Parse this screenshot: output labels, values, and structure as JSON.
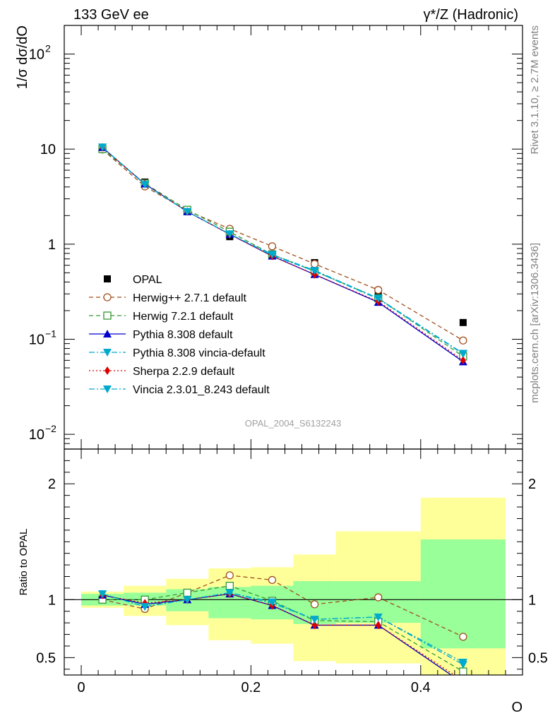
{
  "header": {
    "left_title": "133 GeV ee",
    "right_title": "γ*/Z (Hadronic)"
  },
  "side": {
    "rivet": "Rivet 3.1.10, ≥ 2.7M events",
    "mcplots": "mcplots.cern.ch [arXiv:1306.3436]"
  },
  "analysis_label": "OPAL_2004_S6132243",
  "chart_data": [
    {
      "type": "scatter",
      "panel": "main",
      "ylabel": "1/σ dσ/dO",
      "yscale": "log",
      "ylim": [
        0.007,
        200
      ],
      "xlim": [
        -0.02,
        0.52
      ],
      "yticks": [
        {
          "value": 100,
          "base": "10",
          "exp": "2"
        },
        {
          "value": 10,
          "base": "10",
          "exp": ""
        },
        {
          "value": 1,
          "base": "1",
          "exp": ""
        },
        {
          "value": 0.1,
          "base": "10",
          "exp": "−1"
        },
        {
          "value": 0.01,
          "base": "10",
          "exp": "−2"
        }
      ],
      "x": [
        0.025,
        0.075,
        0.125,
        0.175,
        0.225,
        0.275,
        0.35,
        0.45
      ],
      "bin_edges": [
        0.0,
        0.05,
        0.1,
        0.15,
        0.2,
        0.25,
        0.3,
        0.4,
        0.5
      ],
      "series": [
        {
          "name": "OPAL",
          "color": "#000000",
          "marker": "square",
          "line": "none",
          "values": [
            10.1,
            4.5,
            2.2,
            1.2,
            0.79,
            0.64,
            0.32,
            0.15
          ]
        },
        {
          "name": "Herwig++ 2.7.1 default",
          "color": "#a0501e",
          "marker": "circle-open",
          "line": "dash",
          "values": [
            9.9,
            4.05,
            2.25,
            1.45,
            0.95,
            0.62,
            0.33,
            0.097
          ]
        },
        {
          "name": "Herwig 7.2.1 default",
          "color": "#339933",
          "marker": "square-open",
          "line": "dash",
          "values": [
            10.0,
            4.35,
            2.3,
            1.35,
            0.78,
            0.52,
            0.27,
            0.066
          ]
        },
        {
          "name": "Pythia 8.308 default",
          "color": "#0000cc",
          "marker": "triangle-up",
          "line": "solid",
          "values": [
            10.4,
            4.3,
            2.2,
            1.27,
            0.75,
            0.48,
            0.245,
            0.058
          ]
        },
        {
          "name": "Pythia 8.308 vincia-default",
          "color": "#00aacc",
          "marker": "triangle-down",
          "line": "dashdot",
          "values": [
            10.5,
            4.25,
            2.2,
            1.28,
            0.76,
            0.52,
            0.265,
            0.07
          ]
        },
        {
          "name": "Sherpa 2.2.9 default",
          "color": "#dd0000",
          "marker": "diamond",
          "line": "dot",
          "values": [
            10.4,
            4.3,
            2.2,
            1.27,
            0.75,
            0.48,
            0.25,
            0.06
          ]
        },
        {
          "name": "Vincia 2.3.01_8.243 default",
          "color": "#00aacc",
          "marker": "triangle-down",
          "line": "dashdot",
          "values": [
            10.5,
            4.25,
            2.2,
            1.28,
            0.78,
            0.53,
            0.27,
            0.071
          ]
        }
      ]
    },
    {
      "type": "line",
      "panel": "ratio",
      "ylabel": "Ratio to OPAL",
      "xlabel": "O",
      "ylim": [
        0.35,
        2.3
      ],
      "yticks": [
        0.5,
        1,
        2
      ],
      "xticks": [
        0,
        0.2,
        0.4
      ],
      "reference": 1,
      "band_stat": [
        [
          0.95,
          1.05
        ],
        [
          0.95,
          1.06
        ],
        [
          0.9,
          1.09
        ],
        [
          0.84,
          1.11
        ],
        [
          0.83,
          1.12
        ],
        [
          0.79,
          1.16
        ],
        [
          0.8,
          1.16
        ],
        [
          0.58,
          1.52
        ]
      ],
      "band_total": [
        [
          0.93,
          1.07
        ],
        [
          0.86,
          1.12
        ],
        [
          0.78,
          1.18
        ],
        [
          0.65,
          1.27
        ],
        [
          0.62,
          1.28
        ],
        [
          0.47,
          1.39
        ],
        [
          0.45,
          1.59
        ],
        [
          0.26,
          1.88
        ]
      ],
      "series": [
        {
          "name": "Herwig++ 2.7.1 default",
          "values": [
            1.0,
            0.92,
            1.06,
            1.21,
            1.17,
            0.96,
            1.02,
            0.68
          ]
        },
        {
          "name": "Herwig 7.2.1 default",
          "values": [
            1.0,
            1.0,
            1.06,
            1.12,
            0.99,
            0.82,
            0.81,
            0.38
          ]
        },
        {
          "name": "Pythia 8.308 default",
          "values": [
            1.04,
            0.96,
            1.0,
            1.05,
            0.95,
            0.78,
            0.78,
            0.28
          ]
        },
        {
          "name": "Pythia 8.308 vincia-default",
          "values": [
            1.05,
            0.94,
            1.0,
            1.06,
            0.97,
            0.83,
            0.85,
            0.44
          ]
        },
        {
          "name": "Sherpa 2.2.9 default",
          "values": [
            1.04,
            0.97,
            1.0,
            1.05,
            0.95,
            0.78,
            0.78,
            0.3
          ]
        },
        {
          "name": "Vincia 2.3.01_8.243 default",
          "values": [
            1.05,
            0.94,
            1.0,
            1.06,
            0.98,
            0.83,
            0.85,
            0.46
          ]
        }
      ]
    }
  ]
}
